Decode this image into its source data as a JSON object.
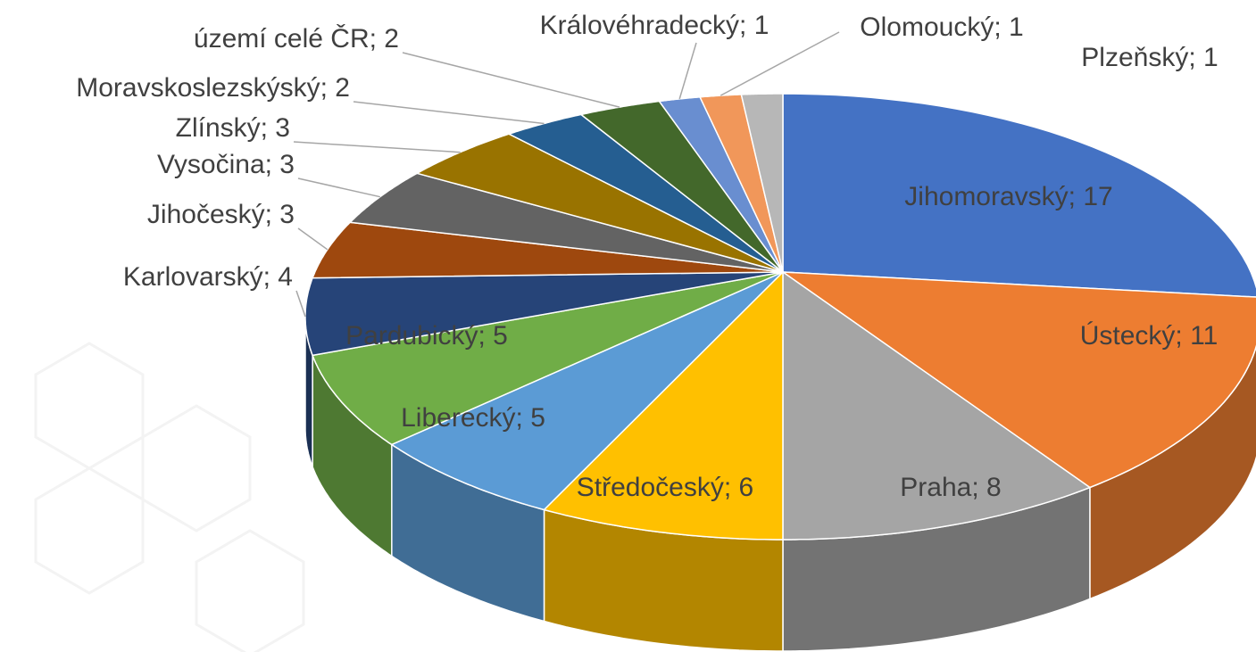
{
  "chart_data": {
    "type": "pie3d",
    "values": [
      17,
      11,
      8,
      6,
      5,
      5,
      4,
      3,
      3,
      3,
      2,
      2,
      1,
      1,
      1
    ],
    "value_labels": [
      "Jihomoravský; 17",
      "Ústecký; 11",
      "Praha; 8",
      "Středočeský; 6",
      "Liberecký; 5",
      "Pardubický; 5",
      "Karlovarský; 4",
      "Jihočeský; 3",
      "Vysočina; 3",
      "Zlínský; 3",
      "Moravskoslezskýský; 2",
      "území celé ČR; 2",
      "Královéhradecký; 1",
      "Olomoucký; 1",
      "Plzeňský; 1"
    ],
    "colors": [
      "#4472c4",
      "#ed7d31",
      "#a5a5a5",
      "#ffc000",
      "#5b9bd5",
      "#70ad47",
      "#264478",
      "#9e480e",
      "#636363",
      "#997300",
      "#255e91",
      "#43682b",
      "#698ed0",
      "#f1975a",
      "#b7b7b7"
    ]
  }
}
